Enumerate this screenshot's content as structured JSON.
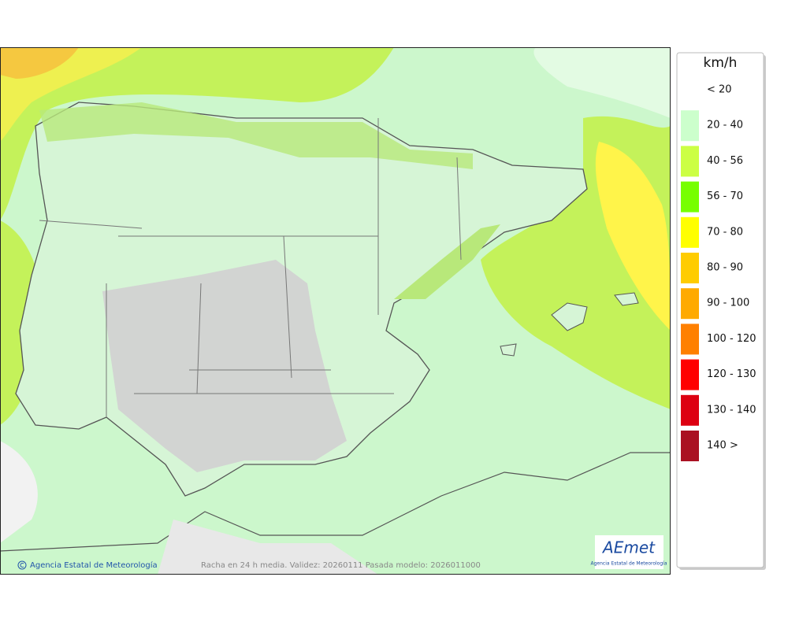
{
  "legend": {
    "unit": "km/h",
    "items": [
      {
        "label": "< 20"
      },
      {
        "label": "20 - 40",
        "color": "#ccffcc"
      },
      {
        "label": "40 - 56",
        "color": "#ccff44"
      },
      {
        "label": "56 - 70",
        "color": "#77ff00"
      },
      {
        "label": "70 - 80",
        "color": "#ffff00"
      },
      {
        "label": "80 - 90",
        "color": "#ffcc00"
      },
      {
        "label": "90 - 100",
        "color": "#ffaa00"
      },
      {
        "label": "100 - 120",
        "color": "#ff8000"
      },
      {
        "label": "120 - 130",
        "color": "#ff0000"
      },
      {
        "label": "130 - 140",
        "color": "#dd0011"
      },
      {
        "label": "140 >",
        "color": "#aa1122"
      }
    ]
  },
  "footer": {
    "credit": "Agencia Estatal de Meteorología",
    "caption": "Racha en 24 h media. Validez: 20260111 Pasada modelo: 2026011000"
  },
  "logo": {
    "name": "AEmet",
    "subtitle": "Agencia Estatal de Meteorología"
  }
}
